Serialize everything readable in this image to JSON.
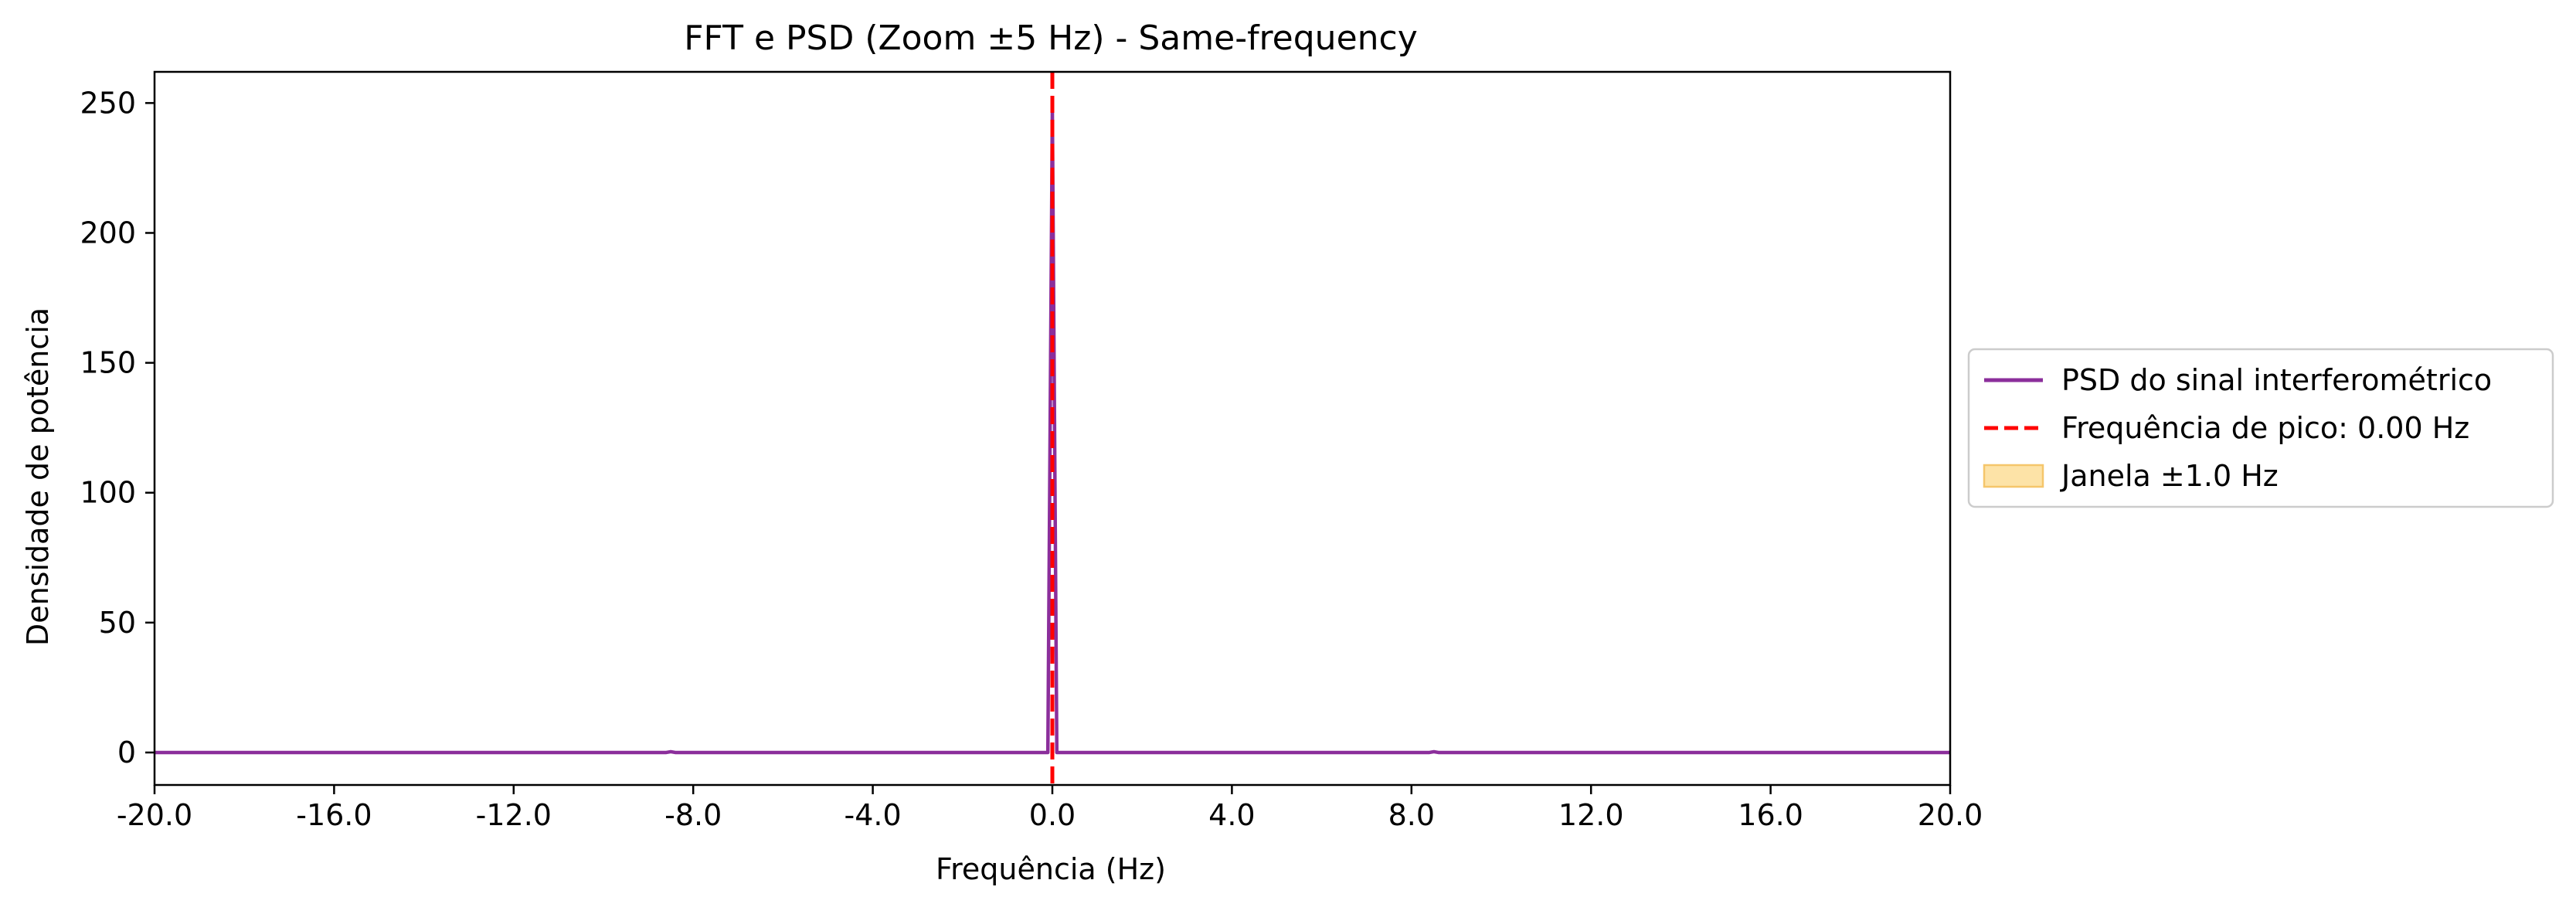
{
  "chart_data": {
    "type": "line",
    "title": "FFT e PSD (Zoom ±5 Hz) - Same-frequency",
    "xlabel": "Frequência (Hz)",
    "ylabel": "Densidade de potência",
    "xlim": [
      -20,
      20
    ],
    "ylim": [
      -12.5,
      262
    ],
    "xticks": [
      -20,
      -16,
      -12,
      -8,
      -4,
      0,
      4,
      8,
      12,
      16,
      20
    ],
    "xtick_labels": [
      "-20.0",
      "-16.0",
      "-12.0",
      "-8.0",
      "-4.0",
      "0.0",
      "4.0",
      "8.0",
      "12.0",
      "16.0",
      "20.0"
    ],
    "yticks": [
      0,
      50,
      100,
      150,
      200,
      250
    ],
    "ytick_labels": [
      "0",
      "50",
      "100",
      "150",
      "200",
      "250"
    ],
    "grid": false,
    "legend_position": "outside right",
    "series": [
      {
        "name": "PSD do sinal interferométrico",
        "color": "#8b2e9b",
        "style": "solid",
        "x": [
          -20,
          -8.6,
          -8.5,
          -8.4,
          -0.1,
          0,
          0.1,
          8.4,
          8.5,
          8.6,
          20
        ],
        "y": [
          0,
          0,
          0.3,
          0,
          0,
          248,
          0,
          0,
          0.3,
          0,
          0
        ]
      }
    ],
    "peak_line": {
      "name": "Frequência de pico: 0.00 Hz",
      "x": 0,
      "color": "#ff0000",
      "style": "dashed"
    },
    "window_band": {
      "name": "Janela ±1.0 Hz",
      "color": "#fde3a7",
      "edge_color": "#f5c66b"
    }
  }
}
